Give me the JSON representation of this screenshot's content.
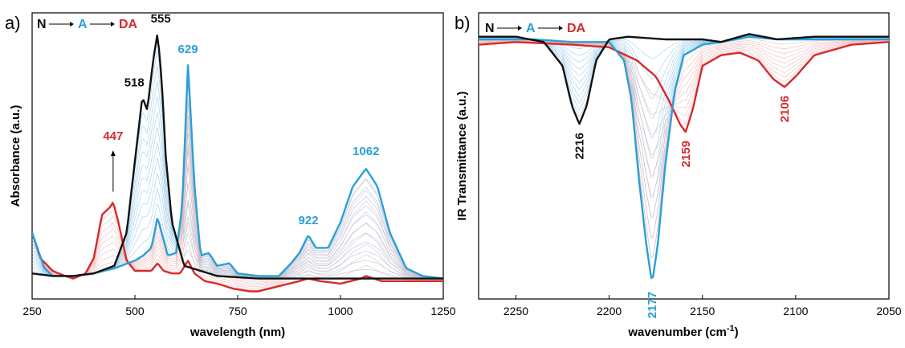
{
  "colors": {
    "N": "#111111",
    "A": "#2a9fd6",
    "DA": "#d62a2a",
    "thinA": "#8fc6e6",
    "thinDA": "#eab0b0"
  },
  "chart_data": [
    {
      "panel_label": "a)",
      "type": "line",
      "xlabel": "wavelength (nm)",
      "ylabel": "Absorbance (a.u.)",
      "xlim": [
        250,
        1250
      ],
      "xticks": [
        250,
        500,
        750,
        1000,
        1250
      ],
      "legend": {
        "items": [
          "N",
          "A",
          "DA"
        ],
        "placement": "top-left"
      },
      "series": [
        {
          "name": "N",
          "x": [
            250,
            300,
            350,
            400,
            450,
            480,
            500,
            518,
            530,
            545,
            555,
            565,
            575,
            590,
            620,
            700,
            800,
            1000,
            1250
          ],
          "y": [
            0.04,
            0.03,
            0.03,
            0.04,
            0.07,
            0.2,
            0.48,
            0.73,
            0.68,
            0.88,
            0.98,
            0.8,
            0.5,
            0.24,
            0.07,
            0.03,
            0.02,
            0.02,
            0.02
          ]
        },
        {
          "name": "A",
          "x": [
            250,
            280,
            300,
            350,
            400,
            450,
            500,
            520,
            540,
            555,
            565,
            580,
            600,
            615,
            629,
            645,
            660,
            680,
            700,
            730,
            750,
            800,
            850,
            880,
            900,
            922,
            940,
            970,
            1000,
            1030,
            1062,
            1090,
            1120,
            1160,
            1200,
            1250
          ],
          "y": [
            0.2,
            0.06,
            0.03,
            0.03,
            0.04,
            0.06,
            0.09,
            0.11,
            0.14,
            0.26,
            0.2,
            0.11,
            0.12,
            0.3,
            0.86,
            0.38,
            0.11,
            0.12,
            0.07,
            0.08,
            0.04,
            0.03,
            0.03,
            0.08,
            0.12,
            0.19,
            0.14,
            0.14,
            0.24,
            0.38,
            0.45,
            0.38,
            0.2,
            0.06,
            0.03,
            0.02
          ]
        },
        {
          "name": "DA",
          "x": [
            250,
            270,
            300,
            330,
            350,
            380,
            400,
            420,
            440,
            447,
            460,
            480,
            500,
            520,
            540,
            555,
            570,
            590,
            610,
            629,
            645,
            670,
            700,
            740,
            780,
            800,
            850,
            900,
            922,
            950,
            1000,
            1050,
            1062,
            1100,
            1150,
            1200,
            1250
          ],
          "y": [
            0.2,
            0.1,
            0.05,
            0.03,
            0.02,
            0.04,
            0.1,
            0.27,
            0.3,
            0.32,
            0.24,
            0.09,
            0.05,
            0.05,
            0.05,
            0.08,
            0.05,
            0.04,
            0.04,
            0.09,
            0.04,
            0.01,
            0.0,
            -0.02,
            -0.03,
            -0.03,
            -0.01,
            0.01,
            0.02,
            0.01,
            0.0,
            0.02,
            0.03,
            0.01,
            0.01,
            0.01,
            0.01
          ]
        }
      ],
      "annotations": [
        {
          "text": "518",
          "x": 518,
          "y": 0.76,
          "series": "N"
        },
        {
          "text": "555",
          "x": 555,
          "y": 1.01,
          "series": "N"
        },
        {
          "text": "629",
          "x": 629,
          "y": 0.89,
          "series": "A"
        },
        {
          "text": "447",
          "x": 447,
          "y": 0.55,
          "series": "DA",
          "arrow_to_y": 0.36
        },
        {
          "text": "922",
          "x": 922,
          "y": 0.22,
          "series": "A"
        },
        {
          "text": "1062",
          "x": 1062,
          "y": 0.49,
          "series": "A"
        }
      ]
    },
    {
      "panel_label": "b)",
      "type": "line",
      "xlabel": "wavenumber (cm",
      "xlabel_sup": "-1",
      "xlabel_end": ")",
      "ylabel": "IR Transmittance (a.u.)",
      "xlim": [
        2270,
        2050
      ],
      "xticks": [
        2250,
        2200,
        2150,
        2100,
        2050
      ],
      "legend": {
        "items": [
          "N",
          "A",
          "DA"
        ],
        "placement": "top-left"
      },
      "series": [
        {
          "name": "N",
          "x": [
            2270,
            2250,
            2235,
            2225,
            2220,
            2216,
            2212,
            2207,
            2200,
            2190,
            2170,
            2150,
            2140,
            2125,
            2110,
            2090,
            2070,
            2050
          ],
          "y": [
            0.99,
            0.99,
            0.97,
            0.88,
            0.73,
            0.66,
            0.73,
            0.9,
            0.98,
            0.99,
            0.98,
            0.98,
            0.97,
            1.0,
            0.98,
            0.99,
            0.99,
            0.99
          ]
        },
        {
          "name": "A",
          "x": [
            2270,
            2240,
            2220,
            2200,
            2192,
            2188,
            2184,
            2180,
            2177,
            2174,
            2170,
            2165,
            2160,
            2150,
            2140,
            2125,
            2110,
            2090,
            2050
          ],
          "y": [
            0.98,
            0.98,
            0.97,
            0.97,
            0.9,
            0.75,
            0.45,
            0.2,
            0.06,
            0.2,
            0.5,
            0.78,
            0.92,
            0.96,
            0.97,
            0.99,
            0.98,
            0.98,
            0.98
          ]
        },
        {
          "name": "DA",
          "x": [
            2270,
            2250,
            2220,
            2200,
            2185,
            2175,
            2168,
            2162,
            2159,
            2155,
            2150,
            2140,
            2130,
            2120,
            2112,
            2106,
            2100,
            2090,
            2070,
            2050
          ],
          "y": [
            0.96,
            0.97,
            0.96,
            0.95,
            0.9,
            0.84,
            0.75,
            0.66,
            0.63,
            0.72,
            0.88,
            0.92,
            0.93,
            0.9,
            0.83,
            0.8,
            0.84,
            0.92,
            0.96,
            0.97
          ]
        }
      ],
      "annotations": [
        {
          "text": "2216",
          "x": 2216,
          "y": 0.64,
          "series": "N"
        },
        {
          "text": "2177",
          "x": 2177,
          "y": 0.04,
          "series": "A"
        },
        {
          "text": "2159",
          "x": 2159,
          "y": 0.61,
          "series": "DA"
        },
        {
          "text": "2106",
          "x": 2106,
          "y": 0.78,
          "series": "DA"
        }
      ]
    }
  ]
}
